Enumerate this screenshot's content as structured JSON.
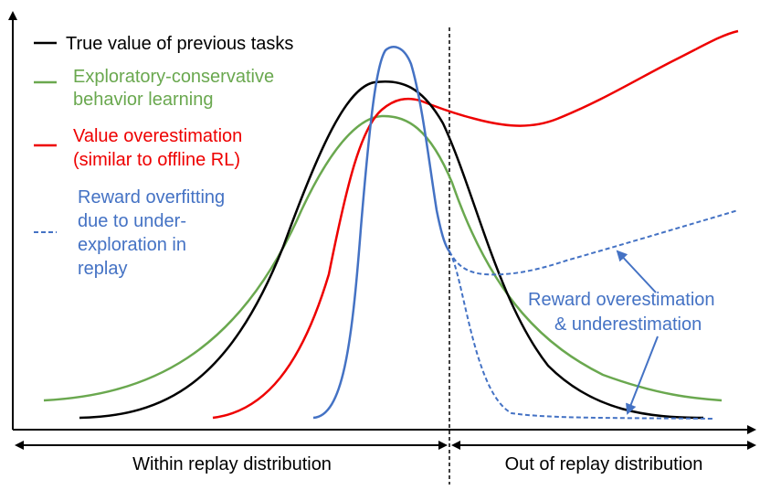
{
  "legend": [
    {
      "lines": [
        "True value of previous tasks"
      ],
      "color": "#000000",
      "style": "solid"
    },
    {
      "lines": [
        "Exploratory-conservative",
        "behavior learning"
      ],
      "color": "#6aa84f",
      "style": "solid"
    },
    {
      "lines": [
        "Value overestimation",
        "(similar to offline RL)"
      ],
      "color": "#ee0000",
      "style": "solid"
    },
    {
      "lines": [
        "Reward overfitting",
        "due to under-",
        "exploration in",
        "replay"
      ],
      "color": "#4472c4",
      "style": "dashed"
    }
  ],
  "annotation": {
    "lines": [
      "Reward overestimation",
      "& underestimation"
    ],
    "color": "#4472c4"
  },
  "regions": {
    "within": "Within replay distribution",
    "out": "Out of replay distribution"
  },
  "colors": {
    "true_value": "#000000",
    "exploratory": "#6aa84f",
    "overestimation": "#ee0000",
    "reward_overfit": "#4472c4"
  }
}
